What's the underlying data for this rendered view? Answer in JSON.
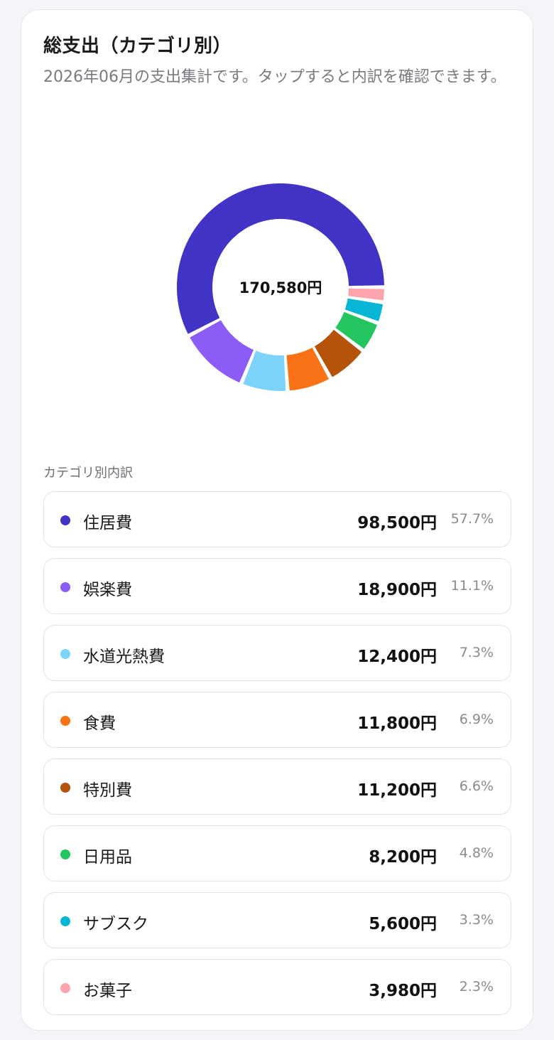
{
  "header": {
    "title": "総支出（カテゴリ別）",
    "subtitle": "2026年06月の支出集計です。タップすると内訳を確認できます。"
  },
  "chart_data": {
    "type": "pie",
    "center_label": "170,580円",
    "categories": [
      "住居費",
      "娯楽費",
      "水道光熱費",
      "食費",
      "特別費",
      "日用品",
      "サブスク",
      "お菓子"
    ],
    "values": [
      98500,
      18900,
      12400,
      11800,
      11200,
      8200,
      5600,
      3980
    ],
    "colors": [
      "#4133c6",
      "#8b5cf6",
      "#7dd3fc",
      "#f97316",
      "#b45309",
      "#22c55e",
      "#06b6d4",
      "#fda4af"
    ]
  },
  "breakdown": {
    "label": "カテゴリ別内訳",
    "items": [
      {
        "label": "住居費",
        "amount": "98,500円",
        "percent": "57.7%",
        "color": "#4133c6"
      },
      {
        "label": "娯楽費",
        "amount": "18,900円",
        "percent": "11.1%",
        "color": "#8b5cf6"
      },
      {
        "label": "水道光熱費",
        "amount": "12,400円",
        "percent": "7.3%",
        "color": "#7dd3fc"
      },
      {
        "label": "食費",
        "amount": "11,800円",
        "percent": "6.9%",
        "color": "#f97316"
      },
      {
        "label": "特別費",
        "amount": "11,200円",
        "percent": "6.6%",
        "color": "#b45309"
      },
      {
        "label": "日用品",
        "amount": "8,200円",
        "percent": "4.8%",
        "color": "#22c55e"
      },
      {
        "label": "サブスク",
        "amount": "5,600円",
        "percent": "3.3%",
        "color": "#06b6d4"
      },
      {
        "label": "お菓子",
        "amount": "3,980円",
        "percent": "2.3%",
        "color": "#fda4af"
      }
    ]
  }
}
